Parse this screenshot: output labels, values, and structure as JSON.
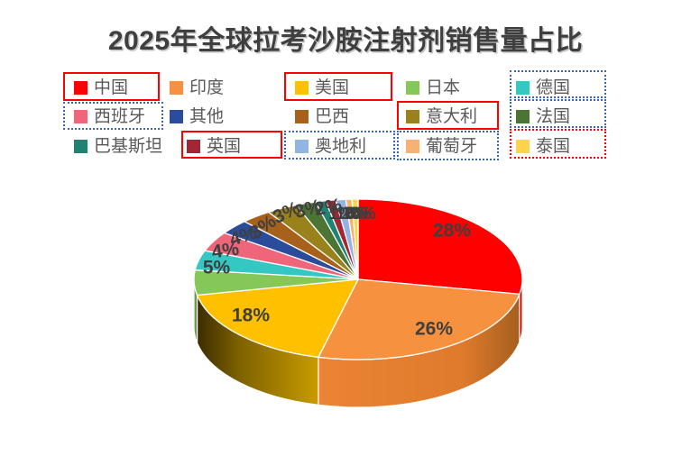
{
  "title": "2025年全球拉考沙胺注射剂销售量占比",
  "chart_data": {
    "type": "pie",
    "style": "3d",
    "title": "2025年全球拉考沙胺注射剂销售量占比",
    "unit": "%",
    "legend_position": "top",
    "series": [
      {
        "key": "china",
        "label": "中国",
        "value": 28,
        "display": "28%",
        "color": "#FE0000",
        "frame": "solid-red"
      },
      {
        "key": "india",
        "label": "印度",
        "value": 26,
        "display": "26%",
        "color": "#F6913F",
        "frame": "none"
      },
      {
        "key": "usa",
        "label": "美国",
        "value": 18,
        "display": "18%",
        "color": "#FFC000",
        "frame": "solid-red"
      },
      {
        "key": "japan",
        "label": "日本",
        "value": 5,
        "display": "5%",
        "color": "#86C75A",
        "frame": "none"
      },
      {
        "key": "germany",
        "label": "德国",
        "value": 4,
        "display": "4%",
        "color": "#35C8C3",
        "frame": "dashed-blue"
      },
      {
        "key": "spain",
        "label": "西班牙",
        "value": 4,
        "display": "4%",
        "color": "#EF6579",
        "frame": "dashed-blue"
      },
      {
        "key": "other",
        "label": "其他",
        "value": 3,
        "display": "3%",
        "color": "#2B4C9B",
        "frame": "none"
      },
      {
        "key": "brazil",
        "label": "巴西",
        "value": 3,
        "display": "3%",
        "color": "#A8611B",
        "frame": "none"
      },
      {
        "key": "italy",
        "label": "意大利",
        "value": 3,
        "display": "3%",
        "color": "#99811B",
        "frame": "solid-red"
      },
      {
        "key": "france",
        "label": "法国",
        "value": 2,
        "display": "2%",
        "color": "#4C7435",
        "frame": "dashed-blue"
      },
      {
        "key": "pakistan",
        "label": "巴基斯坦",
        "value": 1,
        "display": "1%",
        "color": "#1F8373",
        "frame": "none"
      },
      {
        "key": "uk",
        "label": "英国",
        "value": 1,
        "display": "1%",
        "color": "#A32634",
        "frame": "solid-red"
      },
      {
        "key": "austria",
        "label": "奥地利",
        "value": 1,
        "display": "1%",
        "color": "#92B4E5",
        "frame": "dashed-blue"
      },
      {
        "key": "portugal",
        "label": "葡萄牙",
        "value": 0,
        "display": "0%",
        "color": "#F8B26F",
        "frame": "dashed-blue"
      },
      {
        "key": "thailand",
        "label": "泰国",
        "value": 0,
        "display": "0%",
        "color": "#FFD44D",
        "frame": "dashed-red"
      }
    ],
    "annotation_colors": {
      "solid_red": "#FF0000",
      "dashed_blue": "#3A66B8",
      "dashed_red": "#FF0000"
    }
  }
}
